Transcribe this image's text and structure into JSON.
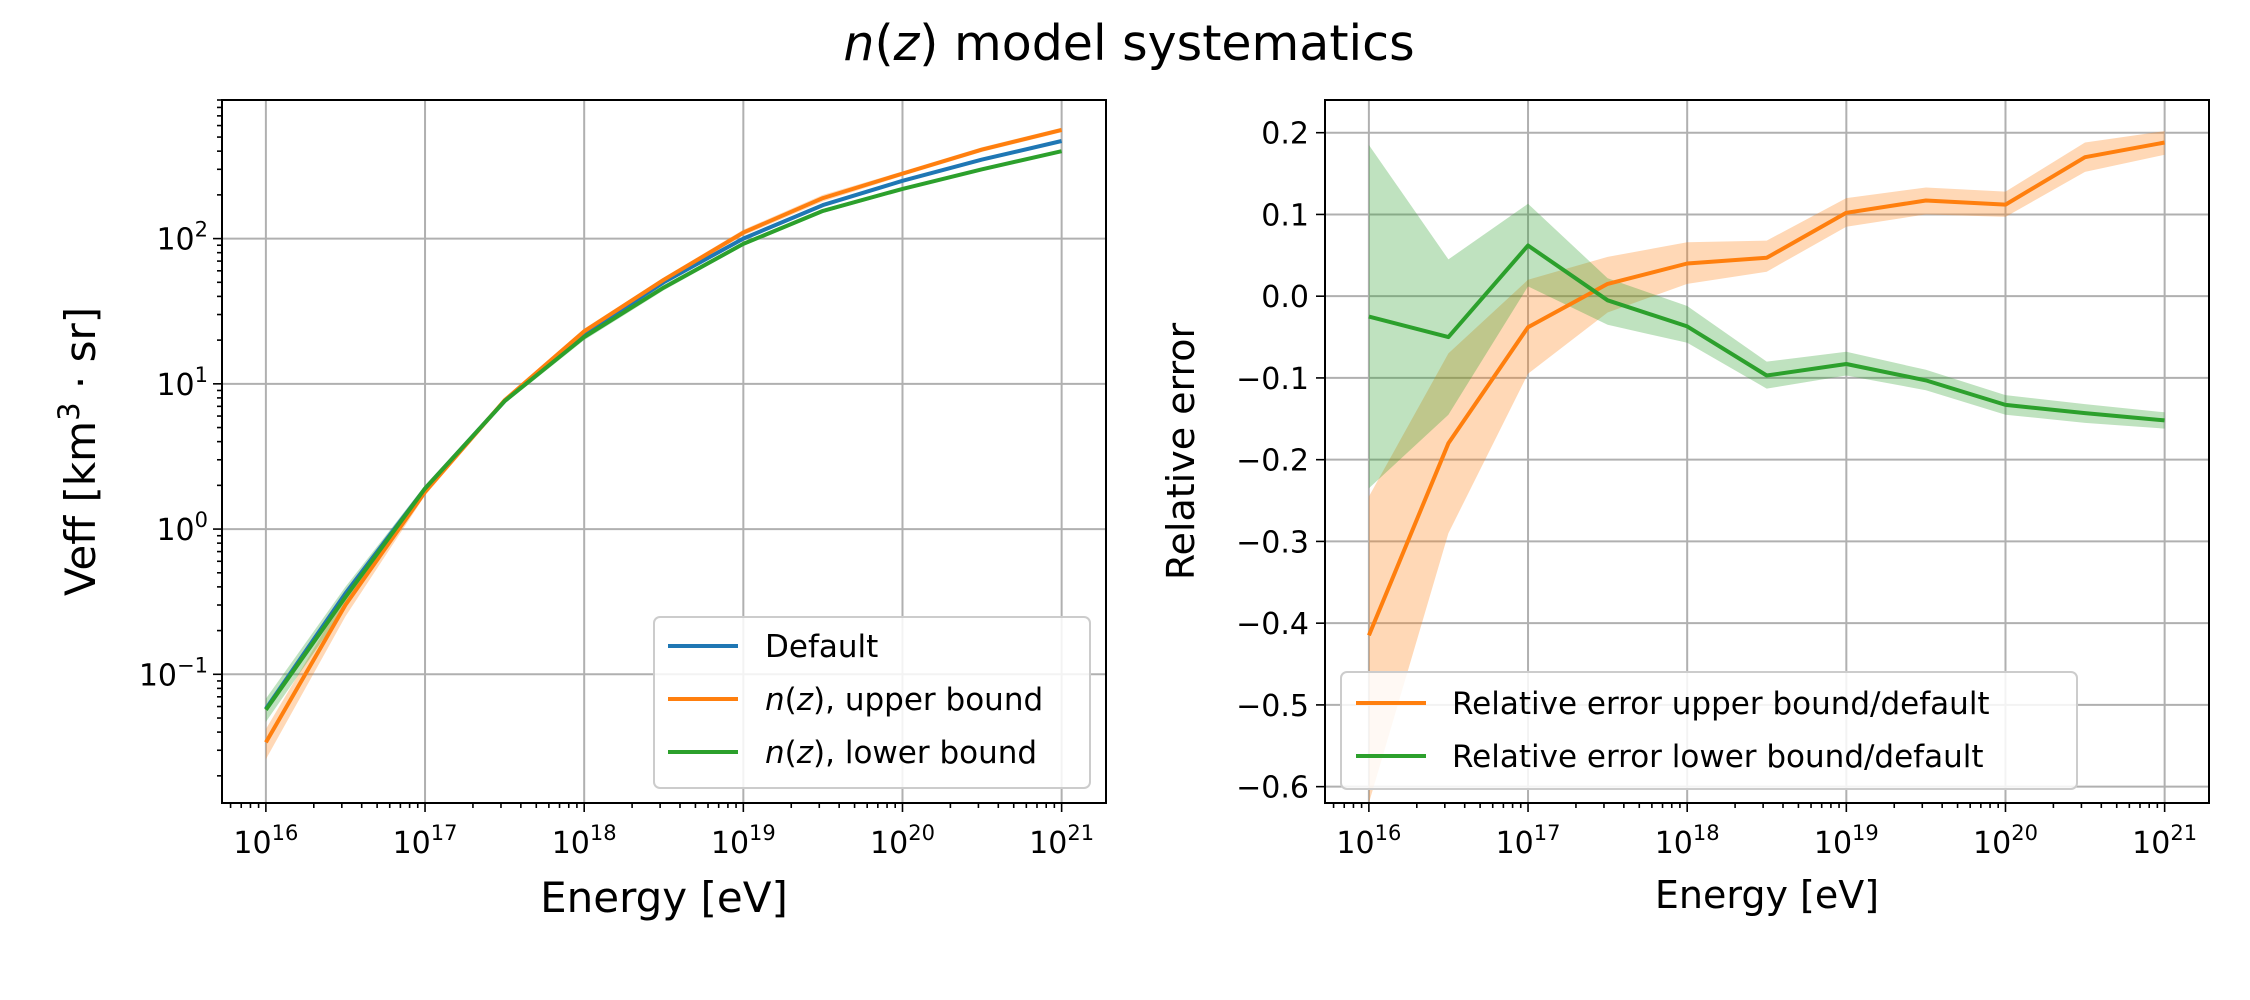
{
  "figure": {
    "title_italic": "n",
    "title_open": "(",
    "title_italic2": "z",
    "title_rest": ") model systematics"
  },
  "chart_data": [
    {
      "type": "line",
      "title": "",
      "xlabel": "Energy [eV]",
      "ylabel": "Veff [km^3 · sr]",
      "xscale": "log",
      "yscale": "log",
      "xlim": [
        5300000000000000.0,
        1.9e+21
      ],
      "ylim": [
        0.013,
        900
      ],
      "grid": true,
      "legend_position": "lower right",
      "x_tick_labels": [
        "10^16",
        "10^17",
        "10^18",
        "10^19",
        "10^20",
        "10^21"
      ],
      "y_tick_labels": [
        "10^-1",
        "10^0",
        "10^1",
        "10^2"
      ],
      "x": [
        1e+16,
        3.16e+16,
        1e+17,
        3.16e+17,
        1e+18,
        3.16e+18,
        1e+19,
        3.16e+19,
        1e+20,
        3.16e+20,
        1e+21
      ],
      "series": [
        {
          "name": "Default",
          "color": "#1f77b4",
          "values": [
            0.058,
            0.36,
            1.9,
            7.6,
            22,
            50,
            100,
            170,
            250,
            350,
            470
          ]
        },
        {
          "name": "n(z), upper bound",
          "color": "#ff7f0e",
          "values": [
            0.034,
            0.3,
            1.8,
            7.7,
            23,
            52,
            110,
            190,
            280,
            410,
            560
          ],
          "band_low": [
            0.026,
            0.25,
            1.7,
            7.4,
            22,
            50,
            105,
            180,
            270,
            395,
            540
          ],
          "band_high": [
            0.042,
            0.35,
            1.9,
            8.0,
            24,
            54,
            115,
            200,
            290,
            425,
            580
          ]
        },
        {
          "name": "n(z), lower bound",
          "color": "#2ca02c",
          "values": [
            0.057,
            0.34,
            1.9,
            7.6,
            21,
            46,
            92,
            155,
            220,
            300,
            400
          ],
          "band_low": [
            0.047,
            0.29,
            1.8,
            7.3,
            20,
            44,
            89,
            150,
            214,
            293,
            392
          ],
          "band_high": [
            0.068,
            0.4,
            2.0,
            7.9,
            22,
            48,
            95,
            160,
            226,
            307,
            408
          ]
        }
      ]
    },
    {
      "type": "line",
      "title": "",
      "xlabel": "Energy [eV]",
      "ylabel": "Relative error",
      "xscale": "log",
      "yscale": "linear",
      "xlim": [
        5300000000000000.0,
        1.9e+21
      ],
      "ylim": [
        -0.62,
        0.24
      ],
      "grid": true,
      "legend_position": "lower left",
      "x_tick_labels": [
        "10^16",
        "10^17",
        "10^18",
        "10^19",
        "10^20",
        "10^21"
      ],
      "y_ticks": [
        0.2,
        0.1,
        0.0,
        -0.1,
        -0.2,
        -0.3,
        -0.4,
        -0.5,
        -0.6
      ],
      "y_tick_labels": [
        "0.2",
        "0.1",
        "0.0",
        "−0.1",
        "−0.2",
        "−0.3",
        "−0.4",
        "−0.5",
        "−0.6"
      ],
      "x": [
        1e+16,
        3.16e+16,
        1e+17,
        3.16e+17,
        1e+18,
        3.16e+18,
        1e+19,
        3.16e+19,
        1e+20,
        3.16e+20,
        1e+21
      ],
      "series": [
        {
          "name": "Relative error upper bound/default",
          "color": "#ff7f0e",
          "values": [
            -0.415,
            -0.18,
            -0.038,
            0.015,
            0.04,
            0.047,
            0.102,
            0.117,
            0.112,
            0.17,
            0.188
          ],
          "band_low": [
            -0.62,
            -0.29,
            -0.095,
            -0.02,
            0.015,
            0.03,
            0.085,
            0.1,
            0.097,
            0.152,
            0.173
          ],
          "band_high": [
            -0.245,
            -0.07,
            0.02,
            0.048,
            0.066,
            0.068,
            0.12,
            0.133,
            0.128,
            0.188,
            0.202
          ]
        },
        {
          "name": "Relative error lower bound/default",
          "color": "#2ca02c",
          "values": [
            -0.025,
            -0.05,
            0.062,
            -0.005,
            -0.037,
            -0.097,
            -0.083,
            -0.103,
            -0.133,
            -0.143,
            -0.152
          ],
          "band_low": [
            -0.235,
            -0.145,
            0.012,
            -0.035,
            -0.057,
            -0.113,
            -0.097,
            -0.115,
            -0.145,
            -0.155,
            -0.162
          ],
          "band_high": [
            0.185,
            0.045,
            0.113,
            0.022,
            -0.012,
            -0.08,
            -0.068,
            -0.09,
            -0.121,
            -0.132,
            -0.142
          ]
        }
      ]
    }
  ]
}
